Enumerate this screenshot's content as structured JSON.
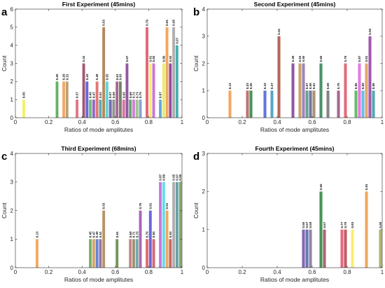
{
  "chart_data": [
    {
      "type": "bar",
      "panel_letter": "a",
      "title": "First Experiment (45mins)",
      "xlabel": "Ratios of mode amplitutes",
      "ylabel": "Count",
      "xlim": [
        0,
        1
      ],
      "ylim": [
        0,
        6
      ],
      "xticks": [
        "0",
        "0.2",
        "0.4",
        "0.6",
        "0.8",
        "1"
      ],
      "yticks": [
        "0",
        "1",
        "2",
        "3",
        "4",
        "5",
        "6"
      ],
      "grid": false,
      "bars": [
        {
          "x": 0.05,
          "label": "0.05",
          "count": 1,
          "color": "#f2f25c"
        },
        {
          "x": 0.25,
          "label": "0.25",
          "count": 2,
          "color": "#5aaa5a"
        },
        {
          "x": 0.29,
          "label": "0.29",
          "count": 2,
          "color": "#f0a258"
        },
        {
          "x": 0.31,
          "label": "0.31",
          "count": 2,
          "color": "#b49a6a"
        },
        {
          "x": 0.37,
          "label": "0.37",
          "count": 1,
          "color": "#dd6a7a"
        },
        {
          "x": 0.41,
          "label": "0.41",
          "count": 3,
          "color": "#9a4a68"
        },
        {
          "x": 0.43,
          "label": "0.43",
          "count": 2,
          "color": "#5a5ad4"
        },
        {
          "x": 0.45,
          "label": "0.45",
          "count": 1,
          "color": "#60b860"
        },
        {
          "x": 0.47,
          "label": "0.47",
          "count": 1,
          "color": "#8a5ac0"
        },
        {
          "x": 0.49,
          "label": "0.49",
          "count": 2,
          "color": "#e06b6b"
        },
        {
          "x": 0.51,
          "label": "0.51",
          "count": 1,
          "color": "#4aa8a8"
        },
        {
          "x": 0.53,
          "label": "0.53",
          "count": 5,
          "color": "#ad7f4e"
        },
        {
          "x": 0.55,
          "label": "0.55",
          "count": 2,
          "color": "#5ad0d0"
        },
        {
          "x": 0.57,
          "label": "0.57",
          "count": 1,
          "color": "#6a5aaa"
        },
        {
          "x": 0.59,
          "label": "0.59",
          "count": 1,
          "color": "#8a8a8a"
        },
        {
          "x": 0.61,
          "label": "0.61",
          "count": 2,
          "color": "#a05a8a"
        },
        {
          "x": 0.63,
          "label": "0.63",
          "count": 2,
          "color": "#6a7a5a"
        },
        {
          "x": 0.65,
          "label": "0.65",
          "count": 1,
          "color": "#d06a9a"
        },
        {
          "x": 0.67,
          "label": "0.67",
          "count": 3,
          "color": "#8a4a9a"
        },
        {
          "x": 0.69,
          "label": "0.69",
          "count": 1,
          "color": "#5a9a6a"
        },
        {
          "x": 0.71,
          "label": "0.71",
          "count": 1,
          "color": "#c87acf"
        },
        {
          "x": 0.73,
          "label": "0.73",
          "count": 1,
          "color": "#9ac080"
        },
        {
          "x": 0.75,
          "label": "0.75",
          "count": 1,
          "color": "#7a9ad0"
        },
        {
          "x": 0.79,
          "label": "0.79",
          "count": 5,
          "color": "#e05a6a"
        },
        {
          "x": 0.81,
          "label": "0.81",
          "count": 3,
          "color": "#f5f06a"
        },
        {
          "x": 0.83,
          "label": "0.83",
          "count": 3,
          "color": "#c86ad0"
        },
        {
          "x": 0.87,
          "label": "0.87",
          "count": 1,
          "color": "#5aa0e0"
        },
        {
          "x": 0.89,
          "label": "0.89",
          "count": 3,
          "color": "#e8e86a"
        },
        {
          "x": 0.91,
          "label": "0.91",
          "count": 5,
          "color": "#f0a050"
        },
        {
          "x": 0.93,
          "label": "0.93",
          "count": 3,
          "color": "#8a3aa0"
        },
        {
          "x": 0.95,
          "label": "0.95",
          "count": 5,
          "color": "#a8a8a8"
        },
        {
          "x": 0.97,
          "label": "0.97",
          "count": 4,
          "color": "#3aa8a8"
        }
      ]
    },
    {
      "type": "bar",
      "panel_letter": "b",
      "title": "Second Experiment (45mins)",
      "xlabel": "Ratios of mode amplitutes",
      "ylabel": "Count",
      "xlim": [
        0,
        1
      ],
      "ylim": [
        0,
        4
      ],
      "xticks": [
        "0",
        "0.2",
        "0.4",
        "0.6",
        "0.8",
        "1"
      ],
      "yticks": [
        "0",
        "1",
        "2",
        "3",
        "4"
      ],
      "grid": false,
      "bars": [
        {
          "x": 0.13,
          "label": "0.13",
          "count": 1,
          "color": "#f0a258"
        },
        {
          "x": 0.23,
          "label": "0.23",
          "count": 1,
          "color": "#b46a6a"
        },
        {
          "x": 0.25,
          "label": "0.25",
          "count": 1,
          "color": "#3a8a4a"
        },
        {
          "x": 0.33,
          "label": "0.33",
          "count": 1,
          "color": "#5a6ad4"
        },
        {
          "x": 0.37,
          "label": "0.37",
          "count": 1,
          "color": "#4aa0c0"
        },
        {
          "x": 0.41,
          "label": "0.41",
          "count": 3,
          "color": "#b05a4a"
        },
        {
          "x": 0.49,
          "label": "0.49",
          "count": 2,
          "color": "#8a4aa0"
        },
        {
          "x": 0.53,
          "label": "0.53",
          "count": 2,
          "color": "#c0a060"
        },
        {
          "x": 0.55,
          "label": "0.55",
          "count": 2,
          "color": "#9a7ab0"
        },
        {
          "x": 0.57,
          "label": "0.57",
          "count": 1,
          "color": "#5a9a8a"
        },
        {
          "x": 0.59,
          "label": "0.59",
          "count": 1,
          "color": "#6a6a9a"
        },
        {
          "x": 0.61,
          "label": "0.61",
          "count": 1,
          "color": "#a08a6a"
        },
        {
          "x": 0.65,
          "label": "0.65",
          "count": 2,
          "color": "#3a8a5a"
        },
        {
          "x": 0.69,
          "label": "0.69",
          "count": 1,
          "color": "#7a7a7a"
        },
        {
          "x": 0.75,
          "label": "0.75",
          "count": 1,
          "color": "#a05a8a"
        },
        {
          "x": 0.79,
          "label": "0.79",
          "count": 2,
          "color": "#e06070"
        },
        {
          "x": 0.85,
          "label": "0.85",
          "count": 1,
          "color": "#5ab85a"
        },
        {
          "x": 0.87,
          "label": "0.87",
          "count": 2,
          "color": "#e070e0"
        },
        {
          "x": 0.89,
          "label": "0.89",
          "count": 1,
          "color": "#5ab8e0"
        },
        {
          "x": 0.91,
          "label": "0.91",
          "count": 2,
          "color": "#e0a060"
        },
        {
          "x": 0.93,
          "label": "0.93",
          "count": 3,
          "color": "#9a4aa8"
        },
        {
          "x": 0.95,
          "label": "0.95",
          "count": 1,
          "color": "#4aa0a8"
        }
      ]
    },
    {
      "type": "bar",
      "panel_letter": "c",
      "title": "Third Experiment (68mins)",
      "xlabel": "Ratios of mode amplitutes",
      "ylabel": "Count",
      "xlim": [
        0,
        1
      ],
      "ylim": [
        0,
        4
      ],
      "xticks": [
        "0",
        "0.2",
        "0.4",
        "0.6",
        "0.8",
        "1"
      ],
      "yticks": [
        "0",
        "1",
        "2",
        "3",
        "4"
      ],
      "grid": false,
      "bars": [
        {
          "x": 0.13,
          "label": "0.13",
          "count": 1,
          "color": "#f0a258"
        },
        {
          "x": 0.45,
          "label": "0.45",
          "count": 1,
          "color": "#6aaa5a"
        },
        {
          "x": 0.47,
          "label": "0.47",
          "count": 1,
          "color": "#d0a060"
        },
        {
          "x": 0.49,
          "label": "0.49",
          "count": 1,
          "color": "#5a7ad0"
        },
        {
          "x": 0.51,
          "label": "0.51",
          "count": 1,
          "color": "#8a6aa0"
        },
        {
          "x": 0.53,
          "label": "0.53",
          "count": 2,
          "color": "#b08a5a"
        },
        {
          "x": 0.61,
          "label": "0.61",
          "count": 1,
          "color": "#6a8a4a"
        },
        {
          "x": 0.69,
          "label": "0.69",
          "count": 1,
          "color": "#c07a7a"
        },
        {
          "x": 0.71,
          "label": "0.71",
          "count": 1,
          "color": "#9a8a6a"
        },
        {
          "x": 0.73,
          "label": "0.73",
          "count": 1,
          "color": "#6aa0a0"
        },
        {
          "x": 0.75,
          "label": "0.75",
          "count": 2,
          "color": "#a05ab0"
        },
        {
          "x": 0.79,
          "label": "0.79",
          "count": 1,
          "color": "#e06060"
        },
        {
          "x": 0.81,
          "label": "0.81",
          "count": 2,
          "color": "#5a5ad8"
        },
        {
          "x": 0.83,
          "label": "0.83",
          "count": 1,
          "color": "#d05a6a"
        },
        {
          "x": 0.87,
          "label": "0.87",
          "count": 3,
          "color": "#c86ad8"
        },
        {
          "x": 0.89,
          "label": "0.89",
          "count": 3,
          "color": "#5ad8e8"
        },
        {
          "x": 0.91,
          "label": "0.91",
          "count": 2,
          "color": "#f0a050"
        },
        {
          "x": 0.93,
          "label": "0.93",
          "count": 1,
          "color": "#c05a5a"
        },
        {
          "x": 0.95,
          "label": "0.95",
          "count": 3,
          "color": "#a8a8a8"
        },
        {
          "x": 0.97,
          "label": "0.97",
          "count": 3,
          "color": "#5a9aa0"
        },
        {
          "x": 0.99,
          "label": "0.99",
          "count": 3,
          "color": "#7aa060"
        }
      ]
    },
    {
      "type": "bar",
      "panel_letter": "d",
      "title": "Fourth Experiment (45mins)",
      "xlabel": "Ratios of mode amplitutes",
      "ylabel": "Count",
      "xlim": [
        0,
        1
      ],
      "ylim": [
        0,
        3
      ],
      "xticks": [
        "0",
        "0.2",
        "0.4",
        "0.6",
        "0.8",
        "1"
      ],
      "yticks": [
        "0",
        "1",
        "2",
        "3"
      ],
      "grid": false,
      "bars": [
        {
          "x": 0.55,
          "label": "0.55",
          "count": 1,
          "color": "#7a5aa8"
        },
        {
          "x": 0.57,
          "label": "0.57",
          "count": 1,
          "color": "#5a6ab0"
        },
        {
          "x": 0.59,
          "label": "0.59",
          "count": 1,
          "color": "#8a7a9a"
        },
        {
          "x": 0.65,
          "label": "0.65",
          "count": 2,
          "color": "#3a8a4a"
        },
        {
          "x": 0.67,
          "label": "0.67",
          "count": 1,
          "color": "#a05a6a"
        },
        {
          "x": 0.77,
          "label": "0.77",
          "count": 1,
          "color": "#e06070"
        },
        {
          "x": 0.79,
          "label": "0.79",
          "count": 1,
          "color": "#c04a5a"
        },
        {
          "x": 0.83,
          "label": "0.83",
          "count": 1,
          "color": "#f5f05a"
        },
        {
          "x": 0.91,
          "label": "0.91",
          "count": 2,
          "color": "#f0a050"
        },
        {
          "x": 0.99,
          "label": "0.99",
          "count": 1,
          "color": "#a8b060"
        }
      ]
    }
  ]
}
